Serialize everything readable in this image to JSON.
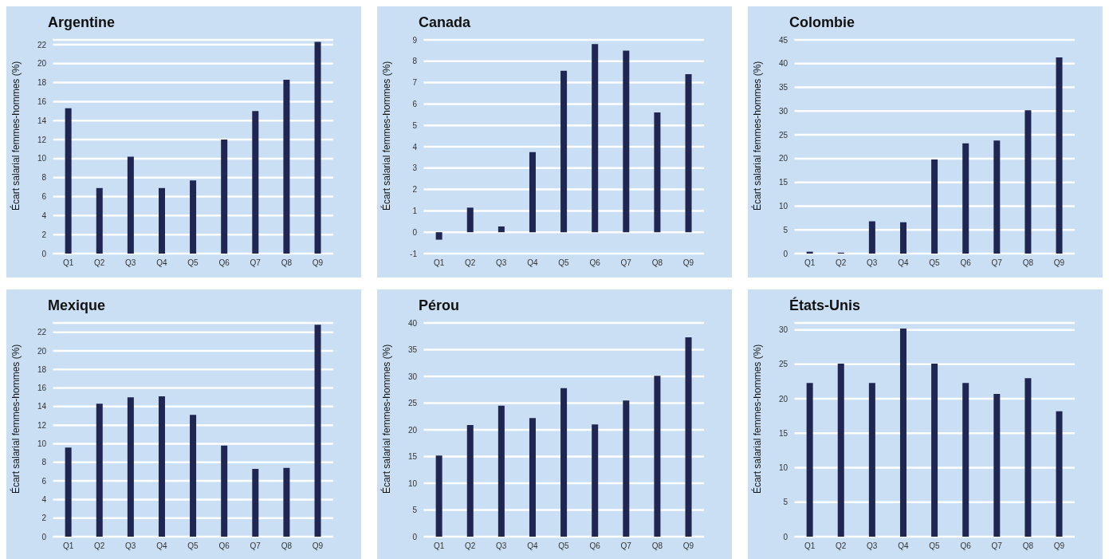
{
  "chart_data": [
    {
      "type": "bar",
      "title": "Argentine",
      "ylabel": "Écart salarial femmes-hommes (%)",
      "categories": [
        "Q1",
        "Q2",
        "Q3",
        "Q4",
        "Q5",
        "Q6",
        "Q7",
        "Q8",
        "Q9"
      ],
      "values": [
        15.3,
        6.9,
        10.2,
        6.9,
        7.7,
        12.0,
        15.0,
        18.3,
        22.3
      ],
      "color": "#1f2651",
      "ylim": [
        0,
        22.5
      ],
      "yticks": [
        0,
        2,
        4,
        6,
        8,
        10,
        12,
        14,
        16,
        18,
        20,
        22
      ],
      "grid": "y"
    },
    {
      "type": "bar",
      "title": "Canada",
      "ylabel": "Écart salarial femmes-hommes (%)",
      "categories": [
        "Q1",
        "Q2",
        "Q3",
        "Q4",
        "Q5",
        "Q6",
        "Q7",
        "Q8",
        "Q9"
      ],
      "values": [
        -0.35,
        1.15,
        0.27,
        3.75,
        7.55,
        8.8,
        8.5,
        5.6,
        7.4
      ],
      "color": "#1f2651",
      "ylim": [
        -1,
        9
      ],
      "yticks": [
        -1,
        0,
        1,
        2,
        3,
        4,
        5,
        6,
        7,
        8,
        9
      ],
      "grid": "y"
    },
    {
      "type": "bar",
      "title": "Colombie",
      "ylabel": "Écart salarial femmes-hommes (%)",
      "categories": [
        "Q1",
        "Q2",
        "Q3",
        "Q4",
        "Q5",
        "Q6",
        "Q7",
        "Q8",
        "Q9"
      ],
      "values": [
        0.4,
        0.2,
        6.8,
        6.6,
        19.8,
        23.2,
        23.8,
        30.2,
        41.3
      ],
      "color": "#1f2651",
      "ylim": [
        0,
        45
      ],
      "yticks": [
        0,
        5,
        10,
        15,
        20,
        25,
        30,
        35,
        40,
        45
      ],
      "grid": "y"
    },
    {
      "type": "bar",
      "title": "Mexique",
      "ylabel": "Écart salarial femmes-hommes (%)",
      "categories": [
        "Q1",
        "Q2",
        "Q3",
        "Q4",
        "Q5",
        "Q6",
        "Q7",
        "Q8",
        "Q9"
      ],
      "values": [
        9.6,
        14.3,
        15.0,
        15.1,
        13.1,
        9.8,
        7.3,
        7.4,
        22.8
      ],
      "color": "#1f2651",
      "ylim": [
        0,
        23
      ],
      "yticks": [
        0,
        2,
        4,
        6,
        8,
        10,
        12,
        14,
        16,
        18,
        20,
        22
      ],
      "grid": "y"
    },
    {
      "type": "bar",
      "title": "Pérou",
      "ylabel": "Écart salarial femmes-hommes (%)",
      "categories": [
        "Q1",
        "Q2",
        "Q3",
        "Q4",
        "Q5",
        "Q6",
        "Q7",
        "Q8",
        "Q9"
      ],
      "values": [
        15.2,
        20.9,
        24.5,
        22.2,
        27.8,
        21.0,
        25.5,
        30.1,
        37.3
      ],
      "color": "#1f2651",
      "ylim": [
        0,
        40
      ],
      "yticks": [
        0,
        5,
        10,
        15,
        20,
        25,
        30,
        35,
        40
      ],
      "grid": "y"
    },
    {
      "type": "bar",
      "title": "États-Unis",
      "ylabel": "Écart salarial femmes-hommes (%)",
      "categories": [
        "Q1",
        "Q2",
        "Q3",
        "Q4",
        "Q5",
        "Q6",
        "Q7",
        "Q8",
        "Q9"
      ],
      "values": [
        22.3,
        25.1,
        22.3,
        30.2,
        25.1,
        22.3,
        20.7,
        23.0,
        18.2
      ],
      "color": "#1f2651",
      "ylim": [
        0,
        31
      ],
      "yticks": [
        0,
        5,
        10,
        15,
        20,
        25,
        30
      ],
      "grid": "y"
    }
  ]
}
